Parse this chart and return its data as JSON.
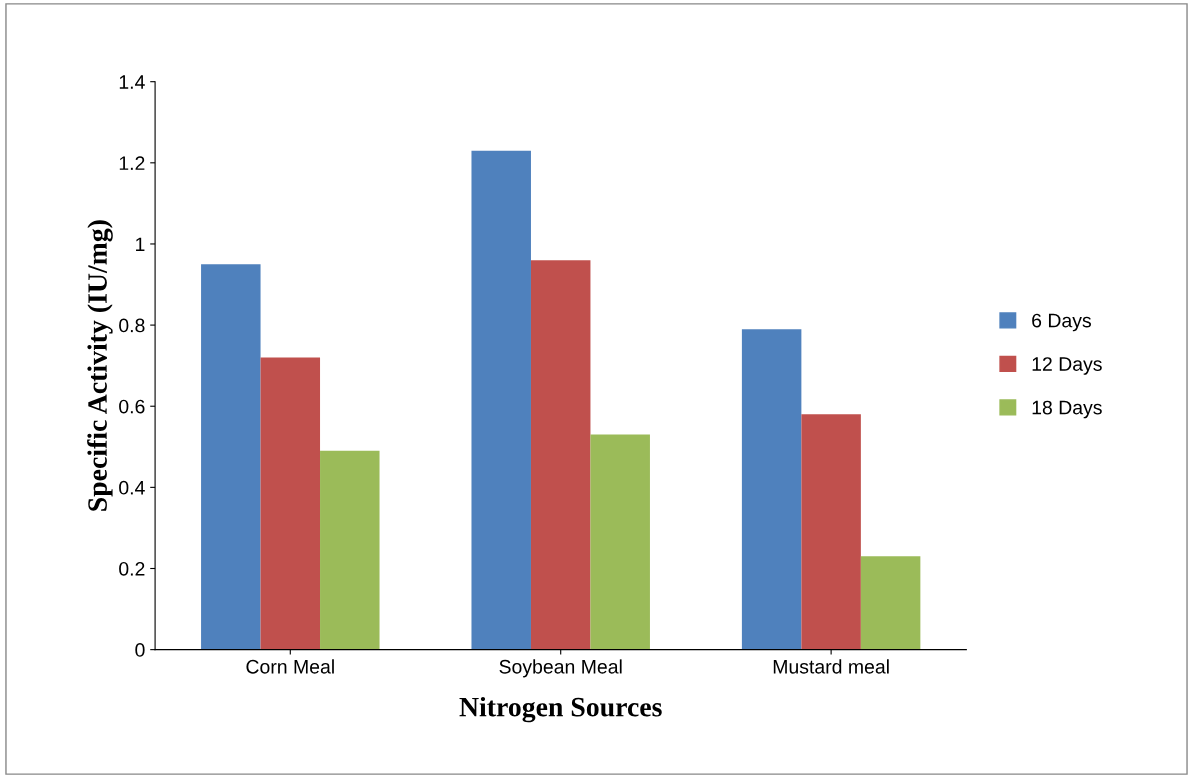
{
  "chart_data": {
    "type": "bar",
    "xlabel": "Nitrogen Sources",
    "ylabel": "Specific Activity (IU/mg)",
    "categories": [
      "Corn Meal",
      "Soybean Meal",
      "Mustard meal"
    ],
    "series": [
      {
        "name": "6 Days",
        "color": "#4f81bd",
        "values": [
          0.95,
          1.23,
          0.79
        ]
      },
      {
        "name": "12 Days",
        "color": "#c0504d",
        "values": [
          0.72,
          0.96,
          0.58
        ]
      },
      {
        "name": "18 Days",
        "color": "#9bbb59",
        "values": [
          0.49,
          0.53,
          0.23
        ]
      }
    ],
    "ylim": [
      0,
      1.4
    ],
    "yticks": [
      0,
      0.2,
      0.4,
      0.6,
      0.8,
      1,
      1.2,
      1.4
    ],
    "grid": false,
    "legend": "right"
  }
}
